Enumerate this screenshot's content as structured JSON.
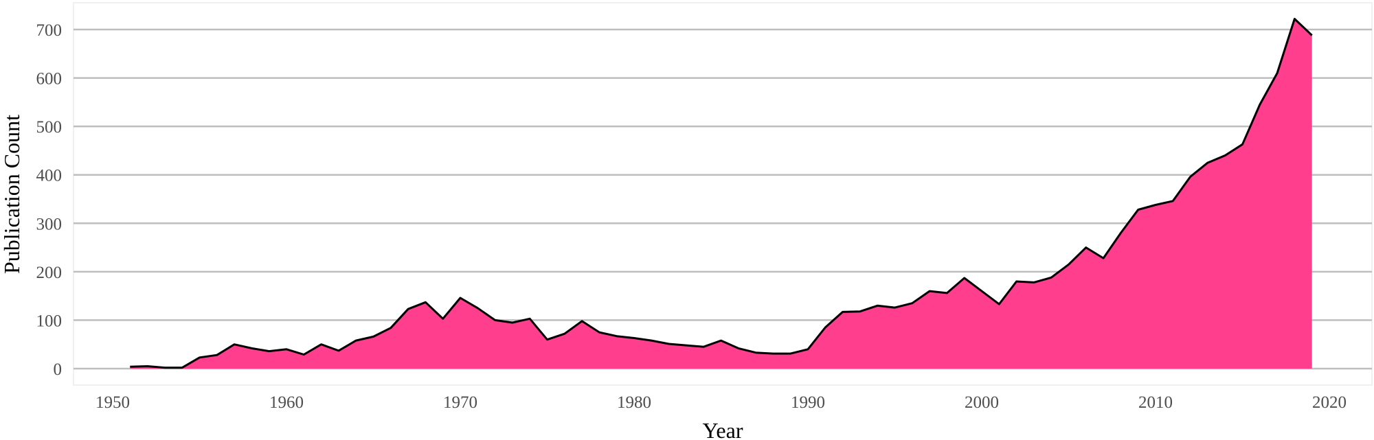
{
  "chart_data": {
    "type": "area",
    "title": "",
    "xlabel": "Year",
    "ylabel": "Publication Count",
    "xlim": [
      1947,
      2022
    ],
    "ylim": [
      -30,
      760
    ],
    "x_ticks": [
      1950,
      1960,
      1970,
      1980,
      1990,
      2000,
      2010,
      2020
    ],
    "y_ticks": [
      0,
      100,
      200,
      300,
      400,
      500,
      600,
      700
    ],
    "grid": {
      "horizontal": true,
      "vertical": false
    },
    "legend": null,
    "colors": {
      "fill": "#FF3F8E",
      "line": "#000000",
      "grid": "#BEBEBE",
      "panel_border": "#EBEBEB",
      "tick_label": "#4D4D4D",
      "axis_title": "#000000"
    },
    "x": [
      1951,
      1952,
      1953,
      1954,
      1955,
      1956,
      1957,
      1958,
      1959,
      1960,
      1961,
      1962,
      1963,
      1964,
      1965,
      1966,
      1967,
      1968,
      1969,
      1970,
      1971,
      1972,
      1973,
      1974,
      1975,
      1976,
      1977,
      1978,
      1979,
      1980,
      1981,
      1982,
      1983,
      1984,
      1985,
      1986,
      1987,
      1988,
      1989,
      1990,
      1991,
      1992,
      1993,
      1994,
      1995,
      1996,
      1997,
      1998,
      1999,
      2000,
      2001,
      2002,
      2003,
      2004,
      2005,
      2006,
      2007,
      2008,
      2009,
      2010,
      2011,
      2012,
      2013,
      2014,
      2015,
      2016,
      2017,
      2018,
      2019
    ],
    "series": [
      {
        "name": "Publication Count",
        "values": [
          4,
          5,
          2,
          2,
          23,
          28,
          50,
          42,
          36,
          40,
          29,
          50,
          37,
          58,
          66,
          84,
          123,
          137,
          103,
          146,
          125,
          100,
          95,
          103,
          60,
          72,
          98,
          75,
          67,
          63,
          58,
          51,
          48,
          45,
          58,
          42,
          33,
          31,
          31,
          40,
          85,
          117,
          118,
          130,
          126,
          135,
          160,
          156,
          187,
          160,
          133,
          180,
          178,
          188,
          215,
          250,
          228,
          280,
          328,
          338,
          346,
          396,
          425,
          440,
          463,
          545,
          610,
          722,
          688
        ]
      }
    ]
  }
}
